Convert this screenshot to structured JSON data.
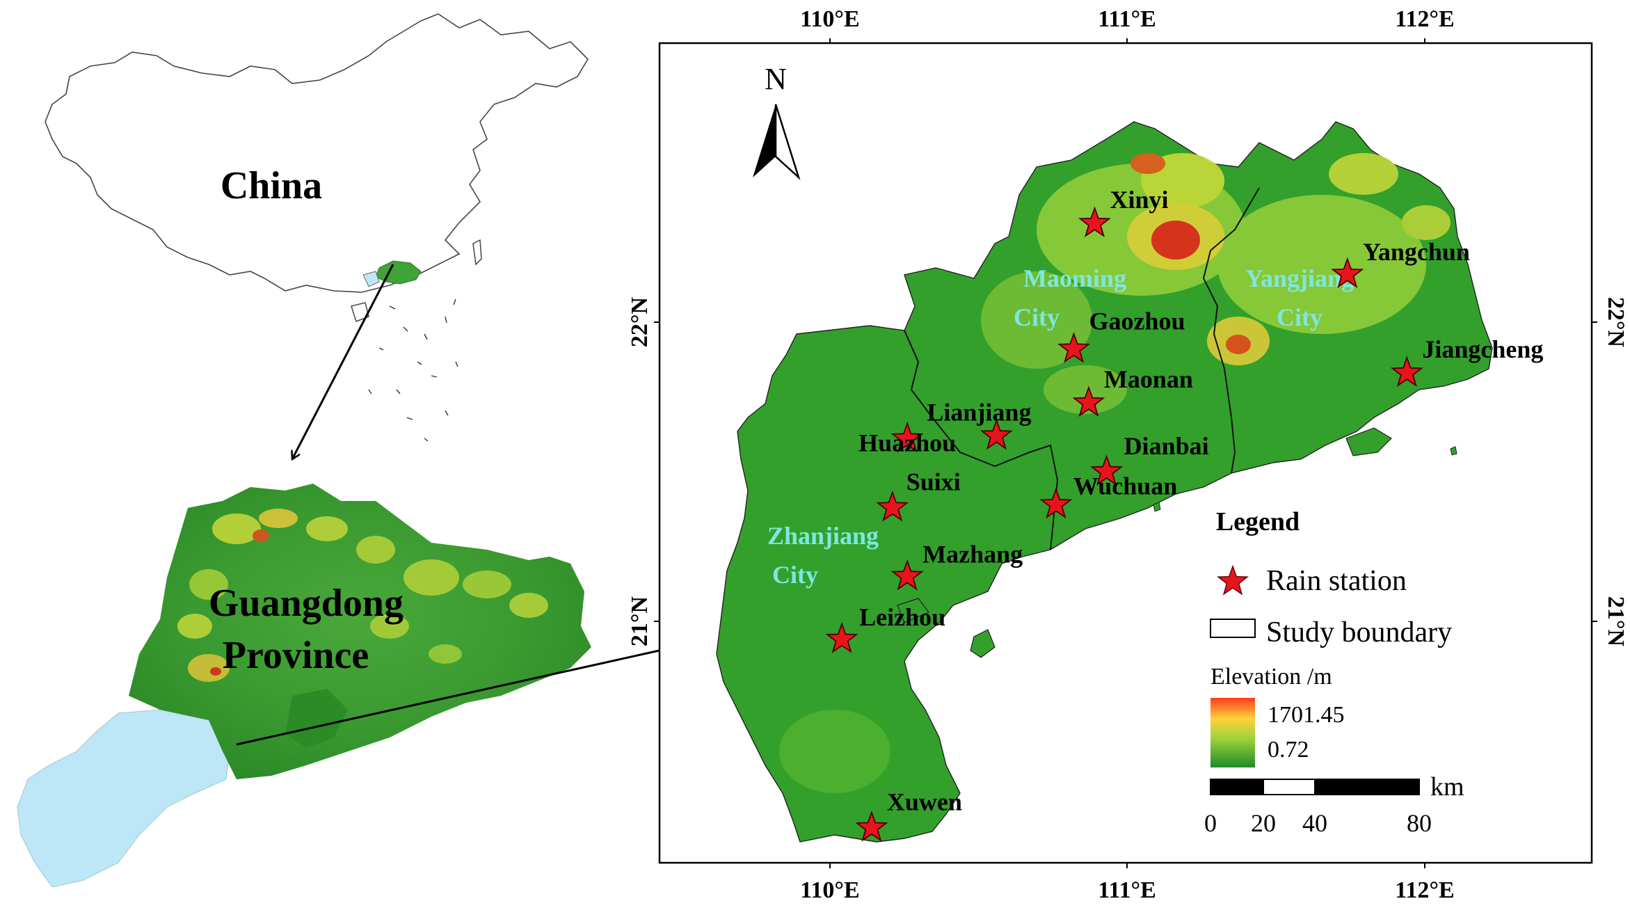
{
  "overview": {
    "china_label": "China",
    "province_label_line1": "Guangdong",
    "province_label_line2": "Province"
  },
  "map": {
    "north_label": "N",
    "lon_ticks": [
      "110°E",
      "111°E",
      "112°E"
    ],
    "lat_ticks": [
      "22°N",
      "21°N"
    ],
    "stations": [
      {
        "name": "Xinyi",
        "lon": 110.89,
        "lat": 22.33
      },
      {
        "name": "Yangchun",
        "lon": 111.74,
        "lat": 22.16
      },
      {
        "name": "Gaozhou",
        "lon": 110.82,
        "lat": 21.91
      },
      {
        "name": "Jiangcheng",
        "lon": 111.94,
        "lat": 21.83
      },
      {
        "name": "Maonan",
        "lon": 110.87,
        "lat": 21.73
      },
      {
        "name": "Lianjiang",
        "lon": 110.56,
        "lat": 21.62
      },
      {
        "name": "Huazhou",
        "lon": 110.26,
        "lat": 21.61
      },
      {
        "name": "Dianbai",
        "lon": 110.93,
        "lat": 21.5
      },
      {
        "name": "Suixi",
        "lon": 110.21,
        "lat": 21.38
      },
      {
        "name": "Wuchuan",
        "lon": 110.76,
        "lat": 21.39
      },
      {
        "name": "Mazhang",
        "lon": 110.26,
        "lat": 21.15
      },
      {
        "name": "Leizhou",
        "lon": 110.04,
        "lat": 20.94
      },
      {
        "name": "Xuwen",
        "lon": 110.14,
        "lat": 20.31
      }
    ],
    "cities": [
      {
        "line1": "Maoming",
        "line2": "City"
      },
      {
        "line1": "Yangjiang",
        "line2": "City"
      },
      {
        "line1": "Zhanjiang",
        "line2": "City"
      }
    ],
    "city_label_color": "#7fe7e0"
  },
  "legend": {
    "title": "Legend",
    "station_label": "Rain station",
    "boundary_label": "Study boundary",
    "elevation_title": "Elevation /m",
    "elevation_max": "1701.45",
    "elevation_min": "0.72",
    "scale_unit": "km",
    "scale_ticks": [
      "0",
      "20",
      "40",
      "80"
    ]
  },
  "colors": {
    "station": "#e8141c",
    "lowland": "#33a02c",
    "midland": "#8fcd3a",
    "highland": "#e6e62a",
    "peak": "#e8281c",
    "sea_guangdong_west": "#bde6f7"
  }
}
